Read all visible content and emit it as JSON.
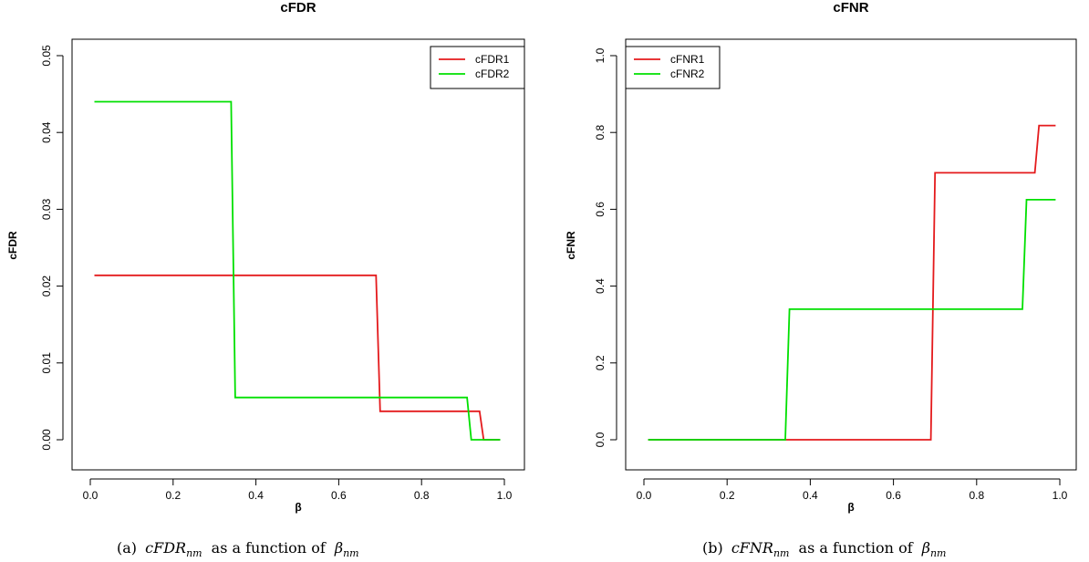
{
  "chart_data": [
    {
      "type": "line",
      "title": "cFDR",
      "xlabel": "β",
      "ylabel": "cFDR",
      "xlim": [
        0,
        1
      ],
      "ylim": [
        0,
        0.05
      ],
      "xticks": [
        "0.0",
        "0.2",
        "0.4",
        "0.6",
        "0.8",
        "1.0"
      ],
      "yticks": [
        "0.00",
        "0.01",
        "0.02",
        "0.03",
        "0.04",
        "0.05"
      ],
      "legend_position": "top-right",
      "grid": false,
      "series": [
        {
          "name": "cFDR1",
          "color": "#e41a1c",
          "x": [
            0.01,
            0.69,
            0.7,
            0.94,
            0.95,
            0.99
          ],
          "y": [
            0.0214,
            0.0214,
            0.0037,
            0.0037,
            0.0,
            0.0
          ]
        },
        {
          "name": "cFDR2",
          "color": "#00e000",
          "x": [
            0.01,
            0.34,
            0.35,
            0.91,
            0.92,
            0.99
          ],
          "y": [
            0.044,
            0.044,
            0.0055,
            0.0055,
            0.0,
            0.0
          ]
        }
      ],
      "caption": {
        "prefix": "(a)",
        "math1": "cFDR",
        "sub1": "nm",
        "text": "as a function of",
        "math2": "β",
        "sub2": "nm"
      }
    },
    {
      "type": "line",
      "title": "cFNR",
      "xlabel": "β",
      "ylabel": "cFNR",
      "xlim": [
        0,
        1
      ],
      "ylim": [
        0,
        1
      ],
      "xticks": [
        "0.0",
        "0.2",
        "0.4",
        "0.6",
        "0.8",
        "1.0"
      ],
      "yticks": [
        "0.0",
        "0.2",
        "0.4",
        "0.6",
        "0.8",
        "1.0"
      ],
      "legend_position": "top-left",
      "grid": false,
      "series": [
        {
          "name": "cFNR1",
          "color": "#e41a1c",
          "x": [
            0.01,
            0.69,
            0.7,
            0.94,
            0.95,
            0.99
          ],
          "y": [
            0.0,
            0.0,
            0.695,
            0.695,
            0.818,
            0.818
          ]
        },
        {
          "name": "cFNR2",
          "color": "#00e000",
          "x": [
            0.01,
            0.34,
            0.35,
            0.91,
            0.92,
            0.99
          ],
          "y": [
            0.0,
            0.0,
            0.34,
            0.34,
            0.625,
            0.625
          ]
        }
      ],
      "caption": {
        "prefix": "(b)",
        "math1": "cFNR",
        "sub1": "nm",
        "text": "as a function of",
        "math2": "β",
        "sub2": "nm"
      }
    }
  ]
}
